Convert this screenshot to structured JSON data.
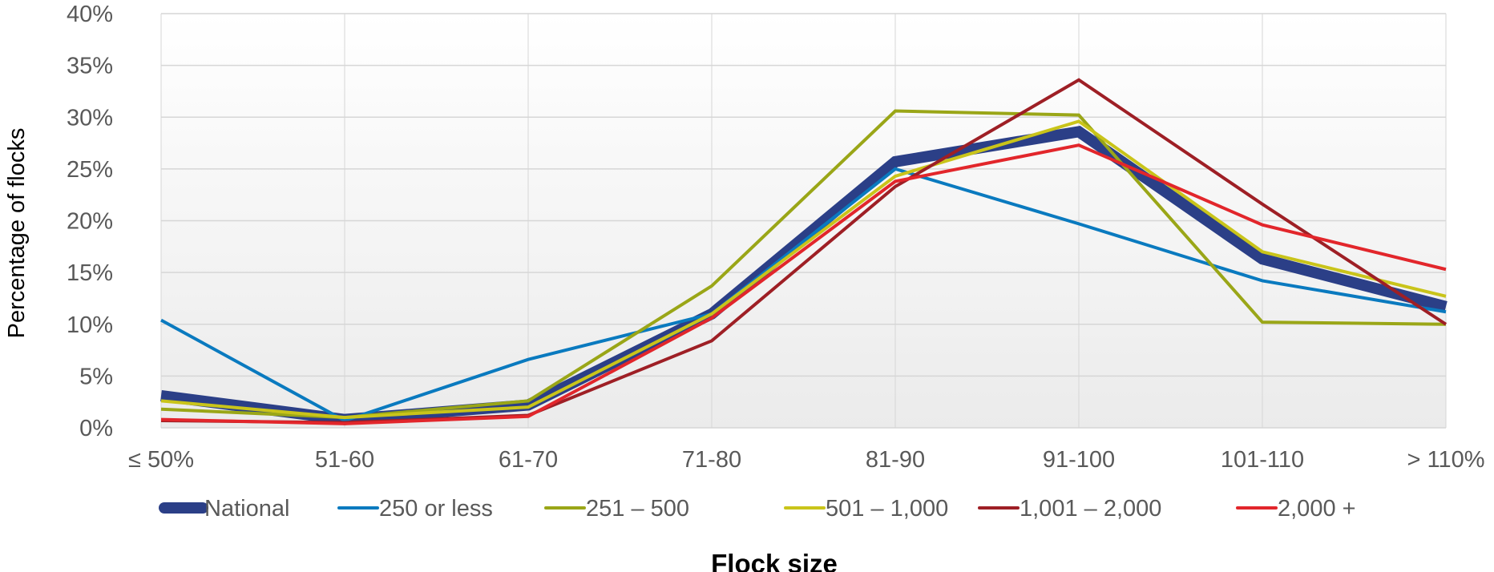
{
  "chart_data": {
    "type": "line",
    "title": "",
    "xlabel": "Flock size",
    "ylabel": "Percentage of flocks",
    "categories": [
      "≤ 50%",
      "51-60",
      "61-70",
      "71-80",
      "81-90",
      "91-100",
      "101-110",
      "> 110%"
    ],
    "ylim": [
      0,
      40
    ],
    "yticks": [
      0,
      5,
      10,
      15,
      20,
      25,
      30,
      35,
      40
    ],
    "ytick_labels": [
      "0%",
      "5%",
      "10%",
      "15%",
      "20%",
      "25%",
      "30%",
      "35%",
      "40%"
    ],
    "grid": true,
    "legend_position": "bottom",
    "series": [
      {
        "name": "National",
        "color": "#2b3f87",
        "values": [
          3.1,
          0.8,
          2.2,
          11.0,
          25.7,
          28.6,
          16.3,
          11.7
        ]
      },
      {
        "name": "250 or less",
        "color": "#0a7abf",
        "values": [
          10.4,
          0.7,
          6.6,
          11.0,
          25.0,
          19.7,
          14.2,
          11.2
        ]
      },
      {
        "name": "251 – 500",
        "color": "#9aa617",
        "values": [
          1.8,
          1.0,
          2.6,
          13.7,
          30.6,
          30.2,
          10.2,
          10.0
        ]
      },
      {
        "name": "501 – 1,000",
        "color": "#c9c41a",
        "values": [
          2.6,
          1.0,
          2.0,
          11.0,
          24.3,
          29.6,
          17.0,
          12.7
        ]
      },
      {
        "name": "1,001 – 2,000",
        "color": "#9e1f25",
        "values": [
          0.7,
          0.5,
          1.2,
          8.4,
          23.3,
          33.6,
          21.6,
          10.0
        ]
      },
      {
        "name": "2,000 +",
        "color": "#e2262b",
        "values": [
          0.8,
          0.4,
          1.1,
          10.6,
          23.8,
          27.3,
          19.6,
          15.3
        ]
      }
    ]
  }
}
